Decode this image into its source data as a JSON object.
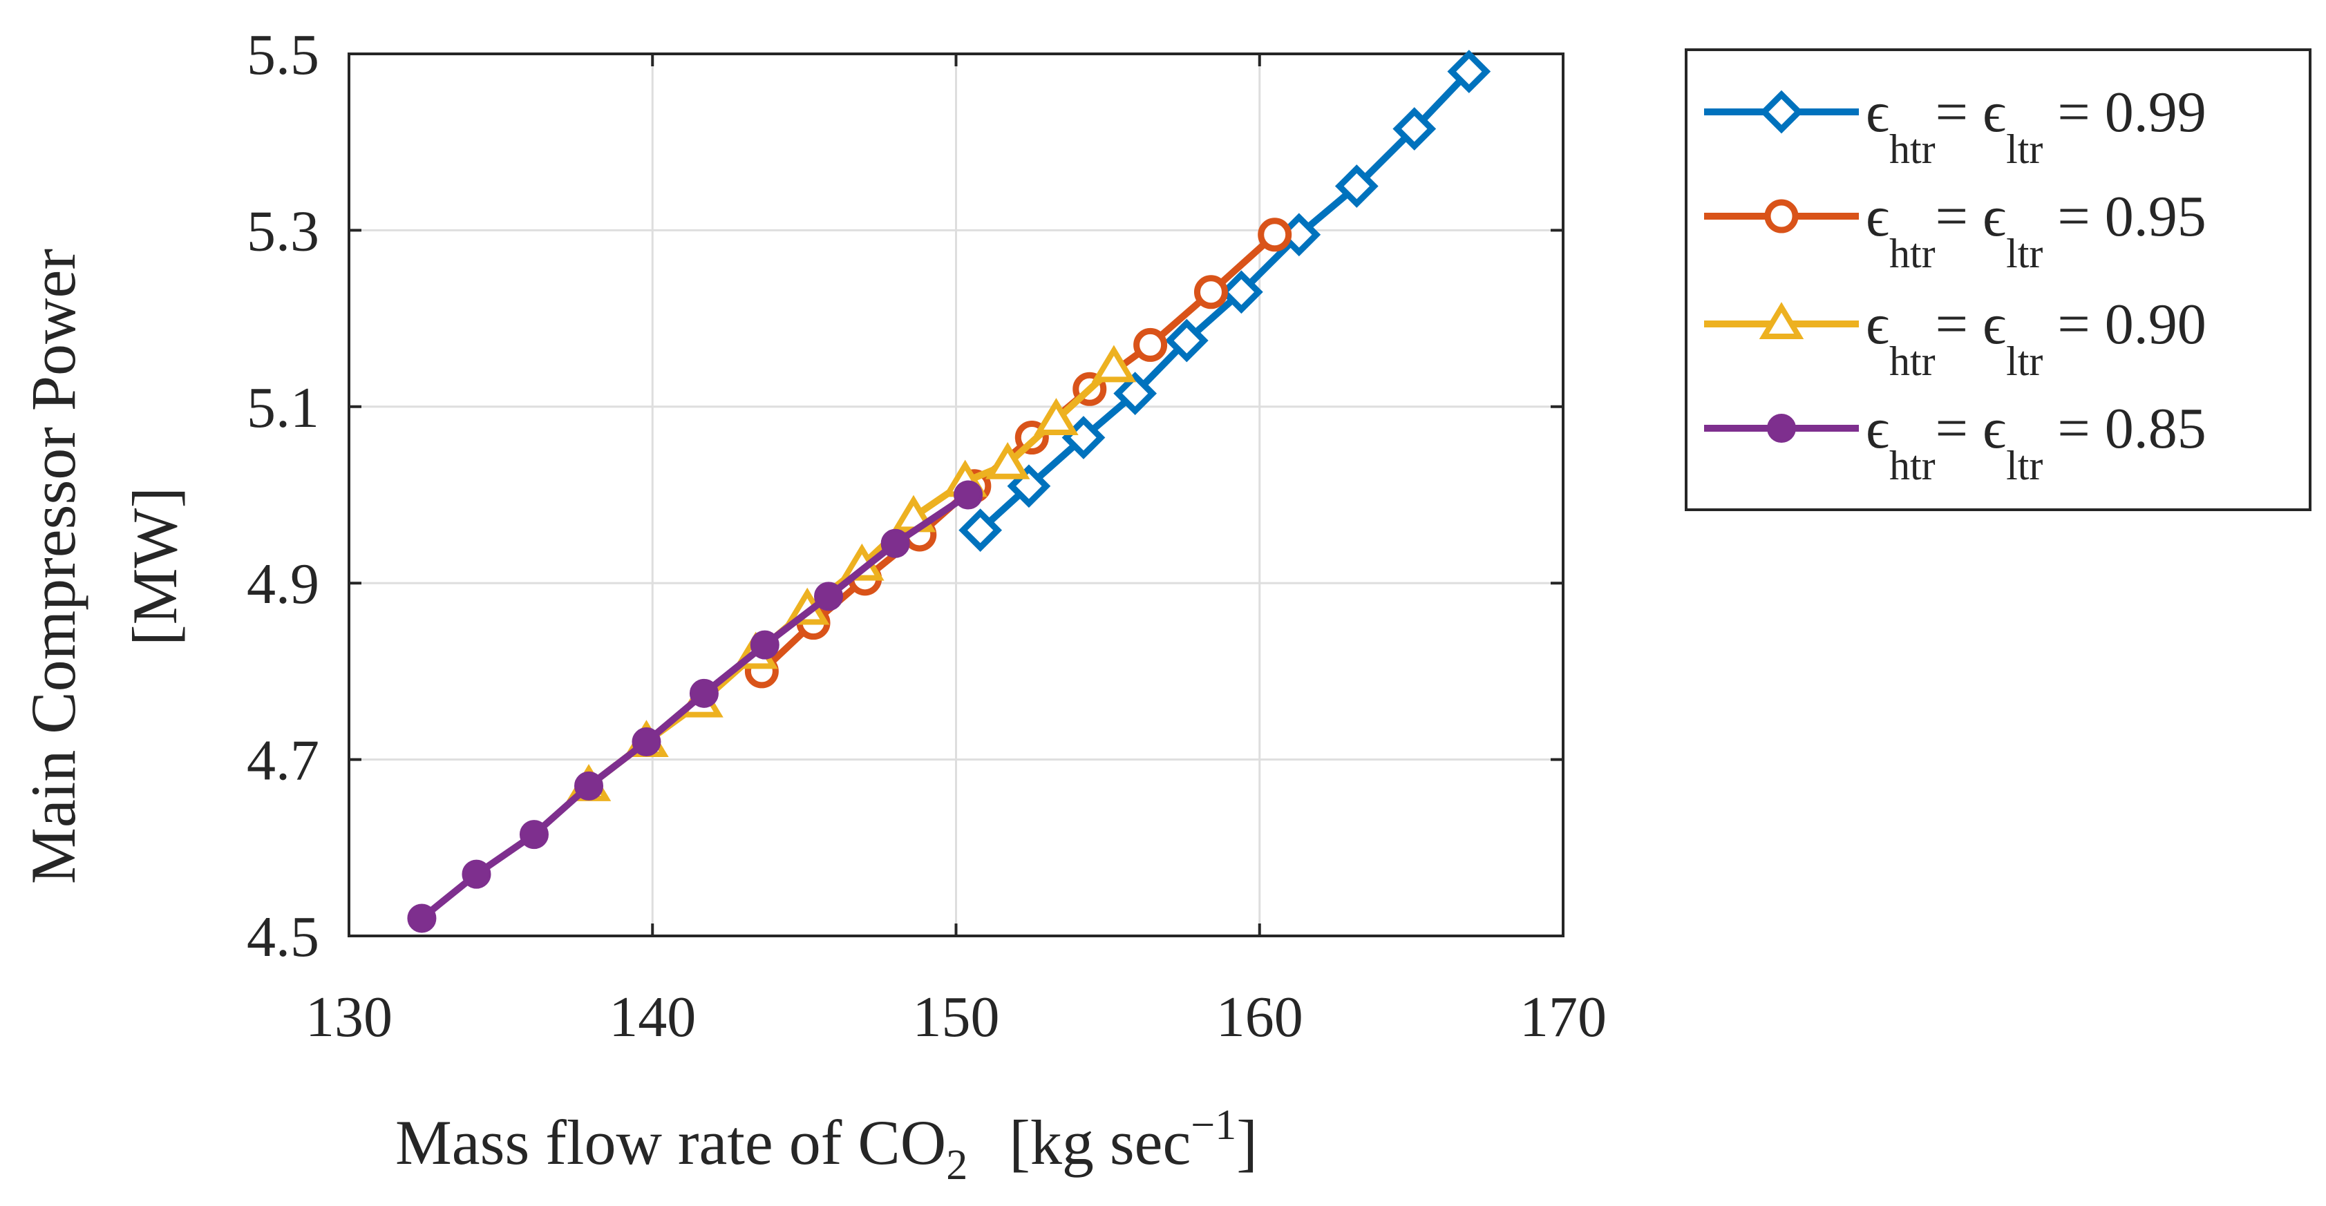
{
  "chart_data": {
    "type": "line",
    "xlabel": "Mass flow rate of CO",
    "xlabel_sub": "2",
    "xlabel_unit": "[kg sec",
    "xlabel_unit_sup": "−1",
    "xlabel_unit_close": "]",
    "ylabel_line1": "Main Compressor  Power",
    "ylabel_line2": "[MW]",
    "xlim": [
      130,
      170
    ],
    "ylim": [
      4.5,
      5.5
    ],
    "x_ticks": [
      "130",
      "140",
      "150",
      "160",
      "170"
    ],
    "y_ticks": [
      "4.5",
      "4.7",
      "4.9",
      "5.1",
      "5.3",
      "5.5"
    ],
    "x_tick_values": [
      130,
      140,
      150,
      160,
      170
    ],
    "y_tick_values": [
      4.5,
      4.7,
      4.9,
      5.1,
      5.3,
      5.5
    ],
    "grid": true,
    "legend_position": "outside-right-top",
    "series": [
      {
        "name": "ε_htr = ε_ltr = 0.99",
        "eps": "ϵ",
        "sub1": "htr",
        "eq": "=",
        "sub2": "ltr",
        "value_text": "= 0.99",
        "color": "#0072BD",
        "marker": "diamond",
        "x": [
          150.8,
          152.4,
          154.2,
          155.9,
          157.6,
          159.4,
          161.3,
          163.2,
          165.1,
          166.9
        ],
        "y": [
          4.96,
          5.01,
          5.065,
          5.115,
          5.175,
          5.23,
          5.295,
          5.35,
          5.415,
          5.48
        ]
      },
      {
        "name": "ε_htr = ε_ltr = 0.95",
        "eps": "ϵ",
        "sub1": "htr",
        "eq": "=",
        "sub2": "ltr",
        "value_text": "= 0.95",
        "color": "#D95319",
        "marker": "circle",
        "x": [
          143.6,
          145.3,
          147.0,
          148.8,
          150.6,
          152.5,
          154.4,
          156.4,
          158.4,
          160.5
        ],
        "y": [
          4.8,
          4.855,
          4.905,
          4.955,
          5.01,
          5.065,
          5.12,
          5.17,
          5.23,
          5.295
        ]
      },
      {
        "name": "ε_htr = ε_ltr = 0.90",
        "eps": "ϵ",
        "sub1": "htr",
        "eq": "=",
        "sub2": "ltr",
        "value_text": "= 0.90",
        "color": "#EDB120",
        "marker": "triangle",
        "x": [
          137.9,
          139.8,
          141.6,
          143.4,
          145.1,
          146.9,
          148.6,
          150.3,
          151.7,
          153.3,
          155.2
        ],
        "y": [
          4.67,
          4.72,
          4.765,
          4.82,
          4.87,
          4.92,
          4.975,
          5.015,
          5.035,
          5.085,
          5.145
        ]
      },
      {
        "name": "ε_htr = ε_ltr = 0.85",
        "eps": "ϵ",
        "sub1": "htr",
        "eq": "=",
        "sub2": "ltr",
        "value_text": "= 0.85",
        "color": "#7E2F8E",
        "marker": "dot",
        "x": [
          132.4,
          134.2,
          136.1,
          137.9,
          139.8,
          141.7,
          143.7,
          145.8,
          148.0,
          150.4
        ],
        "y": [
          4.52,
          4.57,
          4.615,
          4.67,
          4.72,
          4.775,
          4.83,
          4.885,
          4.945,
          5.0
        ]
      }
    ]
  }
}
